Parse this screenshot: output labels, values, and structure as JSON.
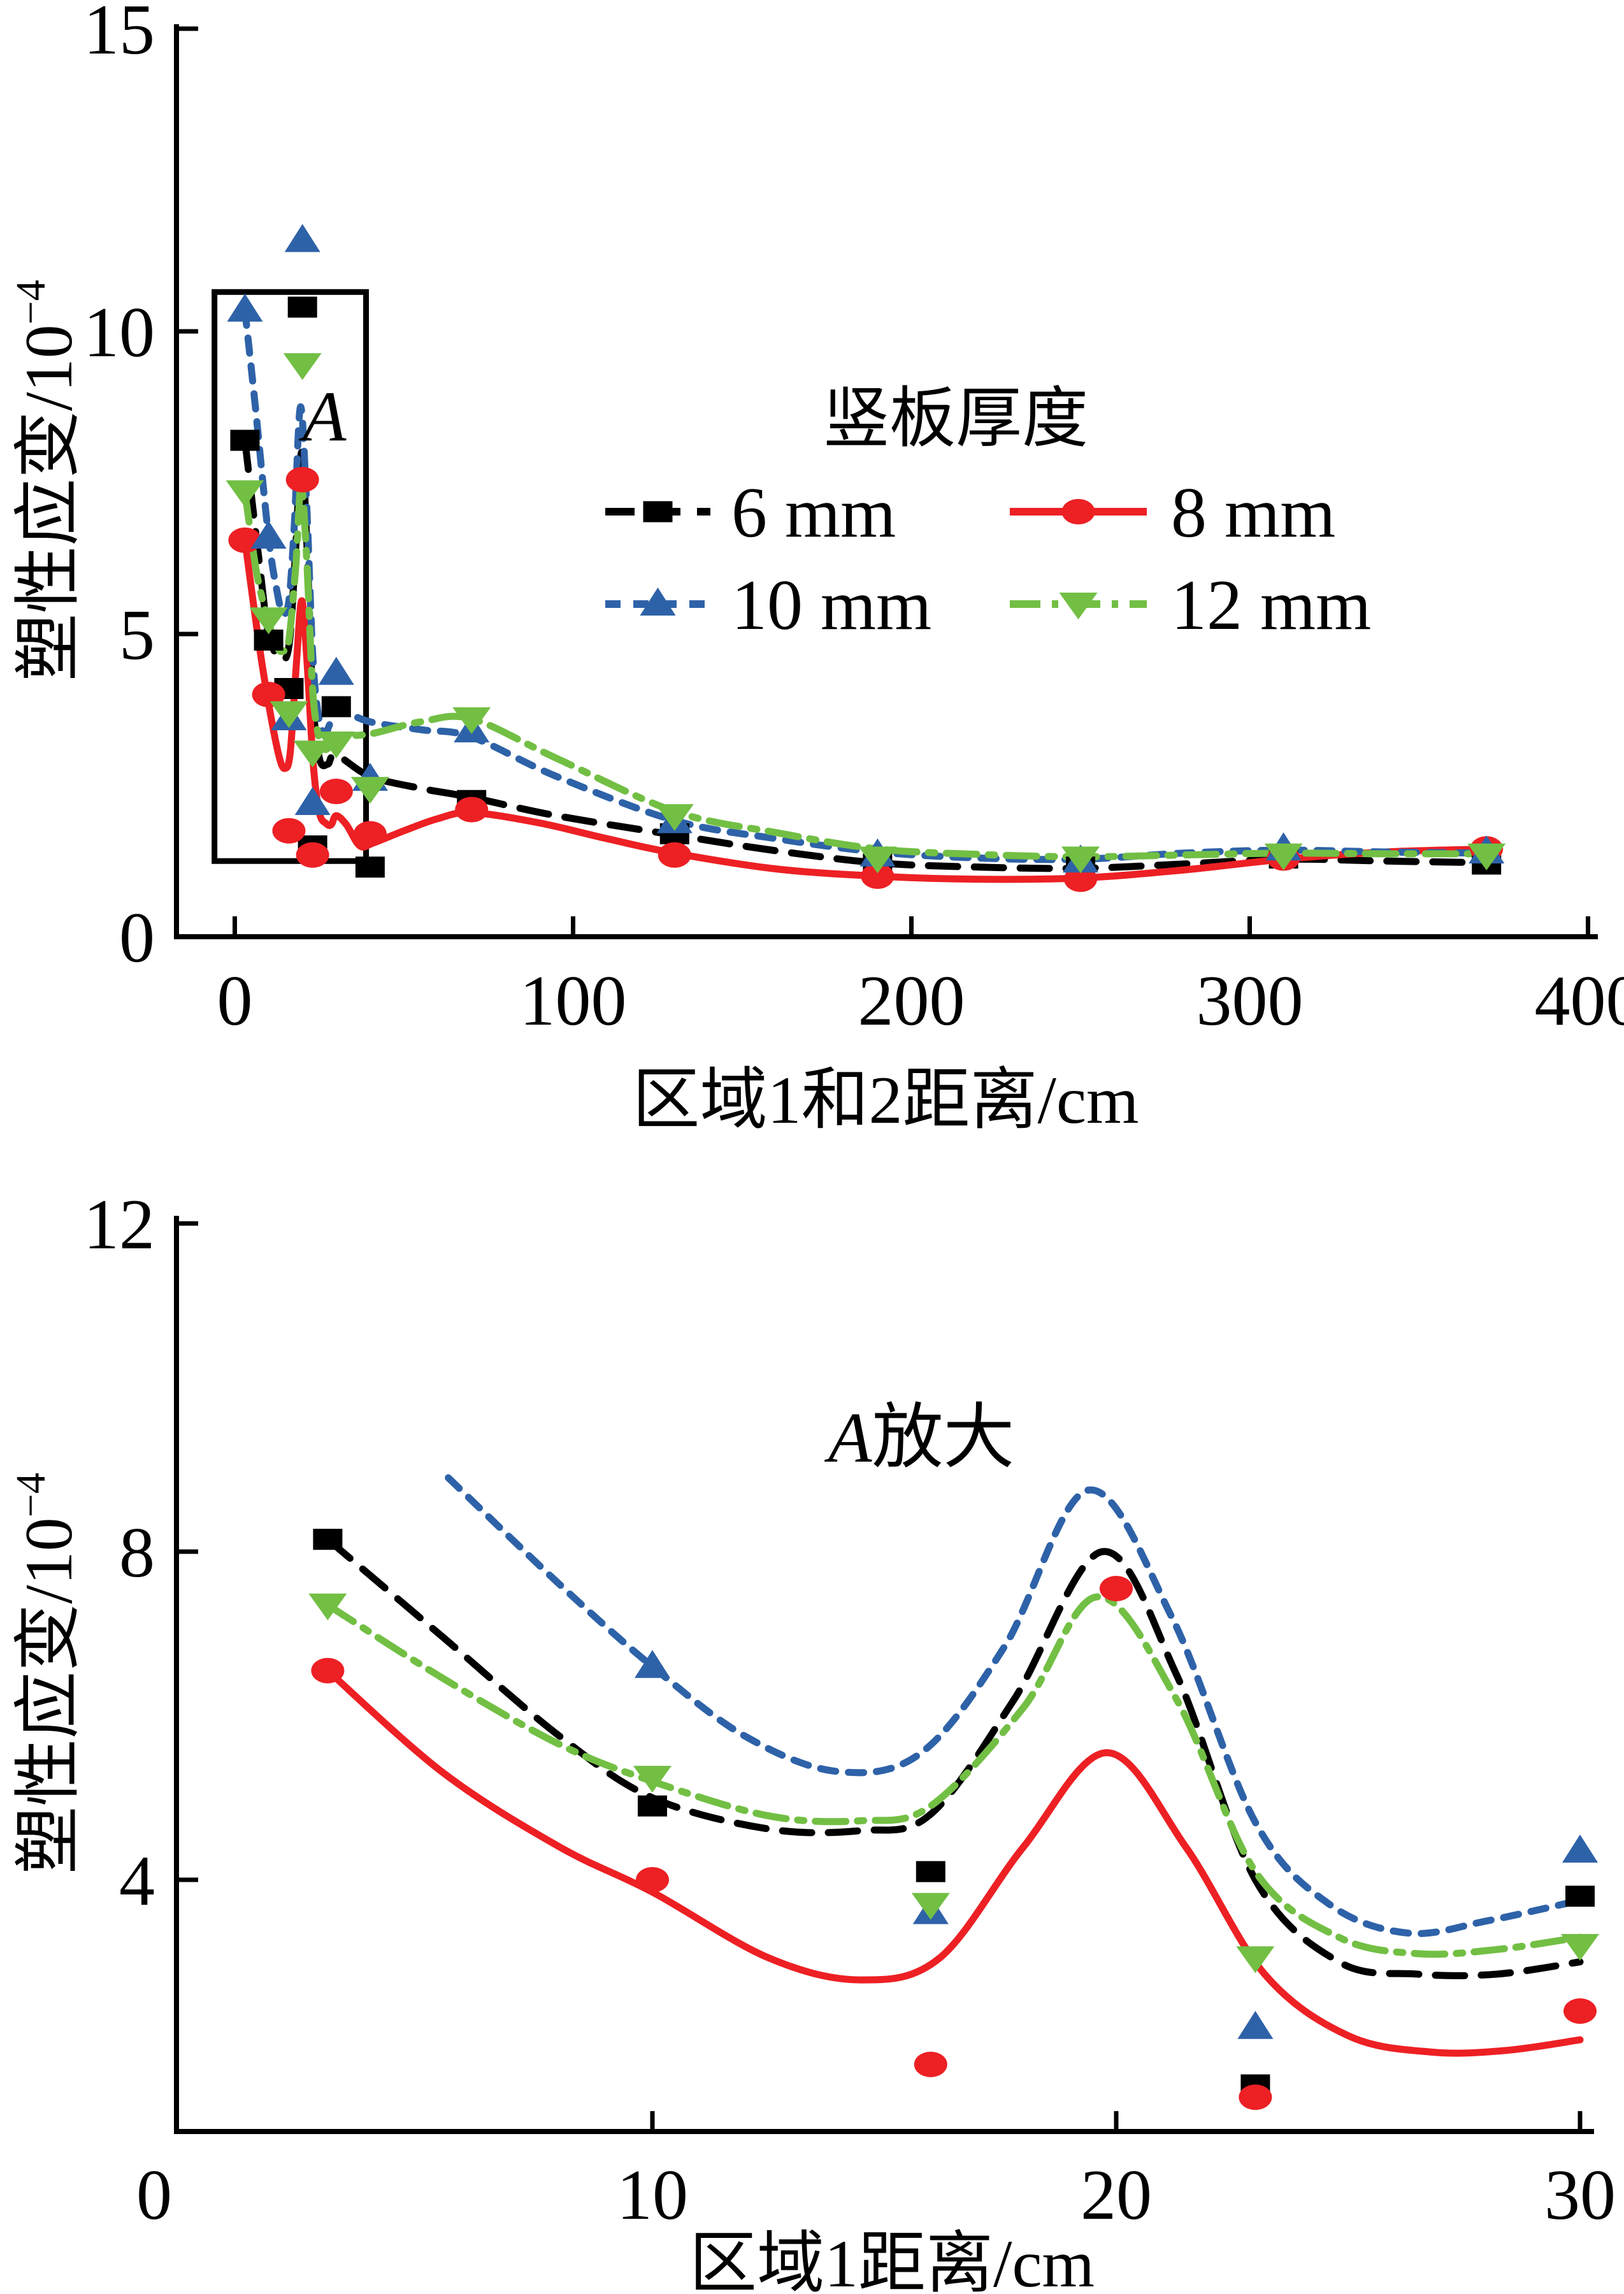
{
  "figure": {
    "background": "#ffffff",
    "text_color": "#000000"
  },
  "chart_data": [
    {
      "id": "main",
      "type": "line",
      "title": "",
      "xlabel": "区域1和2距离/cm",
      "ylabel_base": "塑性应变/10",
      "ylabel_exp": "−4",
      "xlim": [
        -17,
        403
      ],
      "ylim": [
        0,
        15
      ],
      "xticks": [
        0,
        100,
        200,
        300,
        400
      ],
      "yticks": [
        0,
        5,
        10,
        15
      ],
      "grid": false,
      "legend": {
        "title": "竖板厚度",
        "position": "inside-top-center"
      },
      "annotations": [
        {
          "text_italic": "A",
          "text": "",
          "x": 26.5,
          "y": 8.2
        }
      ],
      "zoom_box": {
        "x0": -6,
        "x1": 38.8,
        "y0": 1.25,
        "y1": 10.65,
        "label": "A"
      },
      "series": [
        {
          "name": "6 mm",
          "color": "#000000",
          "line_style": "long-dash",
          "marker": "square",
          "points": [
            [
              3,
              8.2
            ],
            [
              10,
              4.9
            ],
            [
              16,
              4.1
            ],
            [
              20,
              10.4
            ],
            [
              23,
              1.5
            ],
            [
              30,
              3.8
            ],
            [
              40,
              1.15
            ],
            [
              70,
              2.25
            ],
            [
              130,
              1.7
            ],
            [
              190,
              1.2
            ],
            [
              250,
              1.15
            ],
            [
              310,
              1.3
            ],
            [
              370,
              1.2
            ]
          ],
          "curve": [
            [
              3,
              8.2
            ],
            [
              7,
              6.3
            ],
            [
              10,
              5.0
            ],
            [
              13.5,
              4.6
            ],
            [
              16,
              4.8
            ],
            [
              17.8,
              6.2
            ],
            [
              19.7,
              8.0
            ],
            [
              21.3,
              6.5
            ],
            [
              23,
              4.0
            ],
            [
              25,
              2.95
            ],
            [
              27.5,
              2.85
            ],
            [
              30,
              3.0
            ],
            [
              40,
              2.65
            ],
            [
              55,
              2.45
            ],
            [
              70,
              2.3
            ],
            [
              95,
              2.0
            ],
            [
              130,
              1.68
            ],
            [
              160,
              1.42
            ],
            [
              190,
              1.22
            ],
            [
              220,
              1.15
            ],
            [
              250,
              1.13
            ],
            [
              280,
              1.2
            ],
            [
              310,
              1.28
            ],
            [
              340,
              1.25
            ],
            [
              372,
              1.22
            ]
          ]
        },
        {
          "name": "8 mm",
          "color": "#ed2024",
          "line_style": "solid",
          "marker": "circle",
          "points": [
            [
              3,
              6.55
            ],
            [
              10,
              4.0
            ],
            [
              16,
              1.75
            ],
            [
              20,
              7.55
            ],
            [
              23,
              1.35
            ],
            [
              30,
              2.4
            ],
            [
              40,
              1.7
            ],
            [
              70,
              2.1
            ],
            [
              130,
              1.35
            ],
            [
              190,
              1.0
            ],
            [
              250,
              0.95
            ],
            [
              310,
              1.3
            ],
            [
              370,
              1.45
            ]
          ],
          "curve": [
            [
              3,
              6.55
            ],
            [
              7,
              4.9
            ],
            [
              10,
              3.85
            ],
            [
              13,
              3.0
            ],
            [
              14.8,
              2.78
            ],
            [
              16.4,
              3.05
            ],
            [
              18.2,
              4.5
            ],
            [
              19.8,
              5.55
            ],
            [
              21.4,
              4.5
            ],
            [
              23.2,
              2.85
            ],
            [
              25,
              2.05
            ],
            [
              27,
              1.87
            ],
            [
              28.5,
              1.85
            ],
            [
              30,
              2.0
            ],
            [
              33,
              1.85
            ],
            [
              37,
              1.5
            ],
            [
              41,
              1.55
            ],
            [
              50,
              1.75
            ],
            [
              60,
              1.95
            ],
            [
              70,
              2.05
            ],
            [
              90,
              1.88
            ],
            [
              110,
              1.62
            ],
            [
              130,
              1.38
            ],
            [
              160,
              1.12
            ],
            [
              190,
              1.0
            ],
            [
              220,
              0.95
            ],
            [
              250,
              0.97
            ],
            [
              280,
              1.1
            ],
            [
              310,
              1.28
            ],
            [
              340,
              1.4
            ],
            [
              372,
              1.45
            ]
          ]
        },
        {
          "name": "10 mm",
          "color": "#2e62a8",
          "line_style": "short-dash",
          "marker": "triangle-up",
          "points": [
            [
              3,
              10.35
            ],
            [
              10,
              6.6
            ],
            [
              16,
              3.6
            ],
            [
              20,
              11.5
            ],
            [
              23,
              2.2
            ],
            [
              30,
              4.35
            ],
            [
              40,
              2.6
            ],
            [
              70,
              3.4
            ],
            [
              130,
              1.9
            ],
            [
              190,
              1.35
            ],
            [
              250,
              1.25
            ],
            [
              310,
              1.45
            ],
            [
              370,
              1.4
            ]
          ],
          "curve": [
            [
              3,
              10.35
            ],
            [
              6,
              8.8
            ],
            [
              10,
              6.6
            ],
            [
              12.5,
              5.7
            ],
            [
              14.2,
              5.35
            ],
            [
              16,
              5.55
            ],
            [
              17.6,
              6.8
            ],
            [
              19.4,
              8.75
            ],
            [
              21.2,
              7.2
            ],
            [
              23,
              4.7
            ],
            [
              24.6,
              3.7
            ],
            [
              26.5,
              3.35
            ],
            [
              28,
              3.5
            ],
            [
              30,
              3.75
            ],
            [
              40,
              3.55
            ],
            [
              55,
              3.42
            ],
            [
              70,
              3.3
            ],
            [
              95,
              2.65
            ],
            [
              130,
              1.92
            ],
            [
              160,
              1.62
            ],
            [
              190,
              1.4
            ],
            [
              220,
              1.3
            ],
            [
              250,
              1.28
            ],
            [
              280,
              1.38
            ],
            [
              310,
              1.43
            ],
            [
              340,
              1.4
            ],
            [
              372,
              1.38
            ]
          ]
        },
        {
          "name": "12 mm",
          "color": "#72bf44",
          "line_style": "dash-dot",
          "marker": "triangle-down",
          "points": [
            [
              3,
              7.35
            ],
            [
              10,
              5.25
            ],
            [
              16,
              3.7
            ],
            [
              20,
              9.45
            ],
            [
              23,
              3.05
            ],
            [
              30,
              3.2
            ],
            [
              40,
              2.45
            ],
            [
              70,
              3.6
            ],
            [
              130,
              2.0
            ],
            [
              190,
              1.3
            ],
            [
              250,
              1.3
            ],
            [
              310,
              1.35
            ],
            [
              370,
              1.35
            ]
          ],
          "curve": [
            [
              3,
              7.35
            ],
            [
              6.5,
              6.0
            ],
            [
              10,
              5.2
            ],
            [
              12.5,
              4.78
            ],
            [
              14.5,
              4.72
            ],
            [
              16,
              4.9
            ],
            [
              18,
              6.1
            ],
            [
              19.6,
              7.45
            ],
            [
              21.3,
              6.2
            ],
            [
              23,
              4.1
            ],
            [
              24.8,
              3.3
            ],
            [
              26.5,
              3.1
            ],
            [
              28.2,
              3.15
            ],
            [
              30,
              3.3
            ],
            [
              40,
              3.35
            ],
            [
              55,
              3.55
            ],
            [
              70,
              3.6
            ],
            [
              95,
              2.95
            ],
            [
              130,
              2.07
            ],
            [
              160,
              1.72
            ],
            [
              190,
              1.45
            ],
            [
              220,
              1.36
            ],
            [
              250,
              1.32
            ],
            [
              280,
              1.35
            ],
            [
              310,
              1.38
            ],
            [
              340,
              1.37
            ],
            [
              372,
              1.37
            ]
          ]
        }
      ]
    },
    {
      "id": "zoom",
      "type": "line",
      "title": "A放大",
      "xlabel": "区域1距离/cm",
      "ylabel_base": "塑性应变/10",
      "ylabel_exp": "−4",
      "xlim": [
        0,
        30.3
      ],
      "ylim": [
        0.93,
        12.1
      ],
      "xticks": [
        0,
        10,
        20,
        30
      ],
      "yticks": [
        4,
        8,
        12
      ],
      "grid": false,
      "legend": null,
      "annotations": [
        {
          "text_italic": "A",
          "text": "放大",
          "x": 15.8,
          "y": 9.1
        }
      ],
      "zoom_box": null,
      "series": [
        {
          "name": "6 mm",
          "color": "#000000",
          "line_style": "long-dash",
          "marker": "square",
          "points": [
            [
              3,
              8.15
            ],
            [
              10,
              4.9
            ],
            [
              16,
              4.1
            ],
            [
              23,
              1.5
            ],
            [
              30,
              3.8
            ]
          ],
          "curve": [
            [
              3,
              8.15
            ],
            [
              5.5,
              6.95
            ],
            [
              8,
              5.75
            ],
            [
              10,
              5.0
            ],
            [
              12.5,
              4.62
            ],
            [
              14.5,
              4.6
            ],
            [
              16,
              4.8
            ],
            [
              17.8,
              6.2
            ],
            [
              19.7,
              8.0
            ],
            [
              21.3,
              6.5
            ],
            [
              23,
              4.0
            ],
            [
              24.8,
              3.0
            ],
            [
              26.5,
              2.85
            ],
            [
              28.2,
              2.85
            ],
            [
              30,
              3.0
            ]
          ]
        },
        {
          "name": "8 mm",
          "color": "#ed2024",
          "line_style": "solid",
          "marker": "circle",
          "points": [
            [
              3,
              6.55
            ],
            [
              10,
              4.0
            ],
            [
              16,
              1.75
            ],
            [
              20,
              7.55
            ],
            [
              23,
              1.35
            ],
            [
              30,
              2.4
            ]
          ],
          "curve": [
            [
              3,
              6.55
            ],
            [
              5.5,
              5.3
            ],
            [
              8,
              4.4
            ],
            [
              10,
              3.85
            ],
            [
              12.5,
              3.05
            ],
            [
              14.5,
              2.78
            ],
            [
              16.2,
              3.05
            ],
            [
              18,
              4.4
            ],
            [
              19.8,
              5.55
            ],
            [
              21.5,
              4.4
            ],
            [
              23.2,
              2.85
            ],
            [
              25,
              2.1
            ],
            [
              26.8,
              1.9
            ],
            [
              28.4,
              1.92
            ],
            [
              30,
              2.05
            ]
          ]
        },
        {
          "name": "10 mm",
          "color": "#2e62a8",
          "line_style": "short-dash",
          "marker": "triangle-up",
          "points": [
            [
              10,
              6.6
            ],
            [
              16,
              3.6
            ],
            [
              23,
              2.2
            ],
            [
              30,
              4.35
            ]
          ],
          "curve": [
            [
              5.6,
              8.9
            ],
            [
              8,
              7.6
            ],
            [
              10,
              6.6
            ],
            [
              12,
              5.75
            ],
            [
              14,
              5.32
            ],
            [
              15.8,
              5.55
            ],
            [
              17.6,
              6.85
            ],
            [
              19.4,
              8.75
            ],
            [
              21.2,
              7.2
            ],
            [
              23,
              4.7
            ],
            [
              24.6,
              3.7
            ],
            [
              26.3,
              3.35
            ],
            [
              28,
              3.5
            ],
            [
              30,
              3.75
            ]
          ]
        },
        {
          "name": "12 mm",
          "color": "#72bf44",
          "line_style": "dash-dot",
          "marker": "triangle-down",
          "points": [
            [
              3,
              7.35
            ],
            [
              10,
              5.25
            ],
            [
              16,
              3.7
            ],
            [
              23,
              3.05
            ],
            [
              30,
              3.2
            ]
          ],
          "curve": [
            [
              3,
              7.35
            ],
            [
              5.5,
              6.45
            ],
            [
              8,
              5.65
            ],
            [
              10,
              5.2
            ],
            [
              12.5,
              4.78
            ],
            [
              14.5,
              4.72
            ],
            [
              16,
              4.9
            ],
            [
              18,
              6.1
            ],
            [
              19.6,
              7.45
            ],
            [
              21.3,
              6.2
            ],
            [
              23,
              4.1
            ],
            [
              24.8,
              3.3
            ],
            [
              26.5,
              3.1
            ],
            [
              28.2,
              3.15
            ],
            [
              30,
              3.3
            ]
          ]
        }
      ]
    }
  ]
}
